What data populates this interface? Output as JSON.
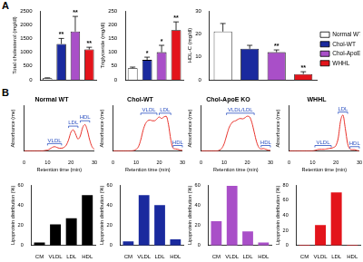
{
  "panel_labels": [
    "A",
    "B"
  ],
  "chart_data": [
    {
      "type": "bar",
      "y_label": "Total cholesterol (mg/dl)",
      "categories": [
        "Normal WT",
        "Chol-WT",
        "Chol-ApoE KO",
        "WHHL"
      ],
      "values": [
        60,
        1300,
        1750,
        1100
      ],
      "errors": [
        10,
        200,
        550,
        80
      ],
      "significance": [
        null,
        "**",
        "**",
        "**"
      ],
      "colors": [
        "#ffffff",
        "#1a2a9e",
        "#a94fc8",
        "#e3141b"
      ],
      "ylim": [
        0,
        2500
      ],
      "yticks": [
        0,
        500,
        1000,
        1500,
        2000,
        2500
      ],
      "tick_labels": "y",
      "grid": false
    },
    {
      "type": "bar",
      "y_label": "Triglyceride (mg/dl)",
      "categories": [
        "Normal WT",
        "Chol-WT",
        "Chol-ApoE KO",
        "WHHL"
      ],
      "values": [
        42,
        72,
        100,
        180
      ],
      "errors": [
        4,
        10,
        25,
        30
      ],
      "significance": [
        null,
        "*",
        "*",
        "**"
      ],
      "colors": [
        "#ffffff",
        "#1a2a9e",
        "#a94fc8",
        "#e3141b"
      ],
      "ylim": [
        0,
        250
      ],
      "yticks": [
        0,
        50,
        100,
        150,
        200,
        250
      ],
      "tick_labels": "y",
      "grid": false
    },
    {
      "type": "bar",
      "y_label": "HDL-C (mg/dl)",
      "categories": [
        "Normal WT",
        "Chol-WT",
        "Chol-ApoE KO",
        "WHHL"
      ],
      "values": [
        21,
        13.5,
        12,
        2.5
      ],
      "errors": [
        3.5,
        1.5,
        1,
        1
      ],
      "significance": [
        null,
        null,
        "**",
        "**"
      ],
      "colors": [
        "#ffffff",
        "#1a2a9e",
        "#a94fc8",
        "#e3141b"
      ],
      "ylim": [
        0,
        30
      ],
      "yticks": [
        0,
        10,
        20,
        30
      ],
      "tick_labels": "y",
      "grid": false,
      "legend": "right"
    },
    {
      "type": "line",
      "title": "Normal WT",
      "x_label": "Retention time (min)",
      "y_label": "Absorbance (mv)",
      "x": [
        0,
        1,
        2,
        3,
        4,
        5,
        6,
        7,
        8,
        9,
        10,
        11,
        12,
        13,
        14,
        15,
        16,
        17,
        18,
        19,
        20,
        21,
        22,
        23,
        24,
        25,
        26,
        27,
        28,
        29,
        30
      ],
      "values": [
        0.01,
        0.01,
        0.01,
        0.01,
        0.01,
        0.01,
        0.01,
        0.01,
        0.01,
        0.02,
        0.03,
        0.06,
        0.1,
        0.12,
        0.1,
        0.08,
        0.08,
        0.1,
        0.16,
        0.3,
        0.5,
        0.56,
        0.45,
        0.32,
        0.4,
        0.62,
        0.7,
        0.55,
        0.3,
        0.12,
        0.05
      ],
      "color": "#e8312a",
      "xlim": [
        0,
        30
      ],
      "xticks": [
        0,
        10,
        20,
        30
      ],
      "ylim": [
        0,
        1.2
      ],
      "tick_labels": "x",
      "grid": false,
      "annotations": [
        {
          "text": "VLDL",
          "x_range": [
            10,
            16
          ],
          "y": 0.2
        },
        {
          "text": "LDL",
          "x_range": [
            19,
            23
          ],
          "y": 0.66
        },
        {
          "text": "HDL",
          "x_range": [
            24,
            28
          ],
          "y": 0.8
        }
      ]
    },
    {
      "type": "line",
      "title": "Chol-WT",
      "x_label": "Retention time (min)",
      "y_label": "Absorbance (mv)",
      "x": [
        0,
        1,
        2,
        3,
        4,
        5,
        6,
        7,
        8,
        9,
        10,
        11,
        12,
        13,
        14,
        15,
        16,
        17,
        18,
        19,
        20,
        21,
        22,
        23,
        24,
        25,
        26,
        27,
        28,
        29,
        30
      ],
      "values": [
        0.01,
        0.01,
        0.01,
        0.01,
        0.01,
        0.01,
        0.01,
        0.01,
        0.01,
        0.02,
        0.05,
        0.12,
        0.3,
        0.55,
        0.72,
        0.8,
        0.82,
        0.8,
        0.8,
        0.85,
        0.9,
        0.86,
        0.9,
        0.92,
        0.7,
        0.3,
        0.08,
        0.06,
        0.05,
        0.03,
        0.02
      ],
      "color": "#e8312a",
      "xlim": [
        0,
        30
      ],
      "xticks": [
        0,
        10,
        20,
        30
      ],
      "ylim": [
        0,
        1.2
      ],
      "tick_labels": "x",
      "grid": false,
      "annotations": [
        {
          "text": "VLDL",
          "x_range": [
            12,
            19
          ],
          "y": 1.0
        },
        {
          "text": "LDL",
          "x_range": [
            20,
            25
          ],
          "y": 1.0
        },
        {
          "text": "HDL",
          "x_range": [
            26,
            30
          ],
          "y": 0.15
        }
      ]
    },
    {
      "type": "line",
      "title": "Chol-ApoE KO",
      "x_label": "Retention time (min)",
      "y_label": "Absorbance (mv)",
      "x": [
        0,
        1,
        2,
        3,
        4,
        5,
        6,
        7,
        8,
        9,
        10,
        11,
        12,
        13,
        14,
        15,
        16,
        17,
        18,
        19,
        20,
        21,
        22,
        23,
        24,
        25,
        26,
        27,
        28,
        29,
        30
      ],
      "values": [
        0.01,
        0.01,
        0.01,
        0.01,
        0.01,
        0.01,
        0.01,
        0.01,
        0.03,
        0.08,
        0.2,
        0.4,
        0.6,
        0.72,
        0.78,
        0.8,
        0.84,
        0.86,
        0.85,
        0.88,
        0.92,
        0.9,
        0.75,
        0.5,
        0.25,
        0.1,
        0.06,
        0.07,
        0.05,
        0.03,
        0.02
      ],
      "color": "#e8312a",
      "xlim": [
        0,
        30
      ],
      "xticks": [
        0,
        10,
        20,
        30
      ],
      "ylim": [
        0,
        1.2
      ],
      "tick_labels": "x",
      "grid": false,
      "annotations": [
        {
          "text": "VLDL/LDL",
          "x_range": [
            11,
            23
          ],
          "y": 1.0
        },
        {
          "text": "HDL",
          "x_range": [
            26,
            30
          ],
          "y": 0.15
        }
      ]
    },
    {
      "type": "line",
      "title": "WHHL",
      "x_label": "Retention time (min)",
      "y_label": "Absorbance (mv)",
      "x": [
        0,
        1,
        2,
        3,
        4,
        5,
        6,
        7,
        8,
        9,
        10,
        11,
        12,
        13,
        14,
        15,
        16,
        17,
        18,
        19,
        20,
        21,
        22,
        23,
        24,
        25,
        26,
        27,
        28,
        29,
        30
      ],
      "values": [
        0.01,
        0.01,
        0.01,
        0.01,
        0.01,
        0.01,
        0.01,
        0.01,
        0.01,
        0.01,
        0.01,
        0.02,
        0.04,
        0.05,
        0.05,
        0.05,
        0.06,
        0.07,
        0.08,
        0.1,
        0.15,
        0.35,
        0.8,
        0.95,
        0.6,
        0.2,
        0.06,
        0.04,
        0.04,
        0.02,
        0.01
      ],
      "color": "#e8312a",
      "xlim": [
        0,
        30
      ],
      "xticks": [
        0,
        10,
        20,
        30
      ],
      "ylim": [
        0,
        1.2
      ],
      "tick_labels": "x",
      "grid": false,
      "annotations": [
        {
          "text": "LDL",
          "x_range": [
            21,
            25
          ],
          "y": 1.03
        },
        {
          "text": "VLDL",
          "x_range": [
            11,
            18
          ],
          "y": 0.15
        },
        {
          "text": "HDL",
          "x_range": [
            26,
            30
          ],
          "y": 0.12
        }
      ]
    },
    {
      "type": "bar",
      "y_label": "Lipoprotein distribution (%)",
      "categories": [
        "CM",
        "VLDL",
        "LDL",
        "HDL"
      ],
      "values": [
        3,
        21,
        27,
        50
      ],
      "color": "#000000",
      "ylim": [
        0,
        60
      ],
      "yticks": [
        0,
        20,
        40,
        60
      ],
      "grid": false
    },
    {
      "type": "bar",
      "y_label": "Lipoprotein distribution (%)",
      "categories": [
        "CM",
        "VLDL",
        "LDL",
        "HDL"
      ],
      "values": [
        4,
        50,
        40,
        6
      ],
      "color": "#1a2a9e",
      "ylim": [
        0,
        60
      ],
      "yticks": [
        0,
        20,
        40,
        60
      ],
      "grid": false
    },
    {
      "type": "bar",
      "y_label": "Lipoprotein distribution (%)",
      "categories": [
        "CM",
        "VLDL",
        "LDL",
        "HDL"
      ],
      "values": [
        24,
        59,
        14,
        3
      ],
      "color": "#a94fc8",
      "ylim": [
        0,
        60
      ],
      "yticks": [
        0,
        20,
        40,
        60
      ],
      "grid": false
    },
    {
      "type": "bar",
      "y_label": "Lipoprotein distribution (%)",
      "categories": [
        "CM",
        "VLDL",
        "LDL",
        "HDL"
      ],
      "values": [
        1,
        27,
        70,
        1
      ],
      "color": "#e3141b",
      "ylim": [
        0,
        80
      ],
      "yticks": [
        0,
        20,
        40,
        60,
        80
      ],
      "grid": false
    }
  ]
}
